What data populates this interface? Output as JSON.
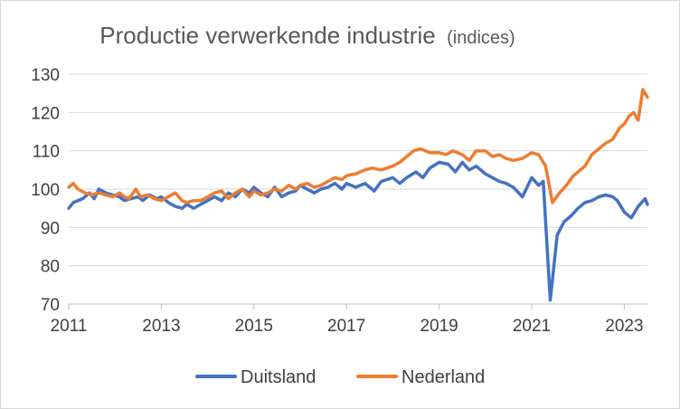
{
  "chart_data": {
    "type": "line",
    "title": "Productie verwerkende industrie",
    "subtitle": "(indices)",
    "xlabel": "",
    "ylabel": "",
    "x_tick_labels": [
      "2011",
      "2013",
      "2015",
      "2017",
      "2019",
      "2021",
      "2023"
    ],
    "x_tick_years": [
      2011,
      2013,
      2015,
      2017,
      2019,
      2021,
      2023
    ],
    "xlim": [
      2011.0,
      2023.5
    ],
    "y_ticks": [
      70,
      80,
      90,
      100,
      110,
      120,
      130
    ],
    "ylim": [
      70,
      130
    ],
    "grid": "horizontal",
    "legend_position": "bottom",
    "series": [
      {
        "name": "Duitsland",
        "color": "#4472C4",
        "points": [
          [
            2011.0,
            95
          ],
          [
            2011.1,
            96.5
          ],
          [
            2011.3,
            97.5
          ],
          [
            2011.45,
            99
          ],
          [
            2011.55,
            97.5
          ],
          [
            2011.65,
            100
          ],
          [
            2011.8,
            99
          ],
          [
            2011.95,
            98.5
          ],
          [
            2012.1,
            98
          ],
          [
            2012.2,
            97
          ],
          [
            2012.35,
            97.5
          ],
          [
            2012.5,
            98
          ],
          [
            2012.6,
            97
          ],
          [
            2012.75,
            98.5
          ],
          [
            2012.9,
            97.5
          ],
          [
            2013.0,
            98
          ],
          [
            2013.15,
            96.5
          ],
          [
            2013.3,
            95.5
          ],
          [
            2013.45,
            95
          ],
          [
            2013.55,
            96
          ],
          [
            2013.7,
            95
          ],
          [
            2013.85,
            96
          ],
          [
            2014.0,
            97
          ],
          [
            2014.15,
            98
          ],
          [
            2014.3,
            97
          ],
          [
            2014.45,
            99
          ],
          [
            2014.6,
            98
          ],
          [
            2014.75,
            100
          ],
          [
            2014.9,
            99
          ],
          [
            2015.0,
            100.5
          ],
          [
            2015.15,
            99
          ],
          [
            2015.3,
            98
          ],
          [
            2015.45,
            100.5
          ],
          [
            2015.6,
            98
          ],
          [
            2015.75,
            99
          ],
          [
            2015.9,
            99.5
          ],
          [
            2016.0,
            101
          ],
          [
            2016.15,
            100
          ],
          [
            2016.3,
            99
          ],
          [
            2016.45,
            100
          ],
          [
            2016.6,
            100.5
          ],
          [
            2016.75,
            101.5
          ],
          [
            2016.9,
            100
          ],
          [
            2017.0,
            101.5
          ],
          [
            2017.2,
            100.5
          ],
          [
            2017.4,
            101.5
          ],
          [
            2017.6,
            99.5
          ],
          [
            2017.75,
            102
          ],
          [
            2018.0,
            103
          ],
          [
            2018.15,
            101.5
          ],
          [
            2018.3,
            103
          ],
          [
            2018.5,
            104.5
          ],
          [
            2018.65,
            103
          ],
          [
            2018.8,
            105.5
          ],
          [
            2019.0,
            107
          ],
          [
            2019.2,
            106.5
          ],
          [
            2019.35,
            104.5
          ],
          [
            2019.5,
            107
          ],
          [
            2019.65,
            105
          ],
          [
            2019.8,
            106
          ],
          [
            2020.0,
            104
          ],
          [
            2020.15,
            103
          ],
          [
            2020.3,
            102
          ],
          [
            2020.45,
            101.5
          ],
          [
            2020.6,
            100.5
          ],
          [
            2020.8,
            98
          ],
          [
            2021.0,
            103
          ],
          [
            2021.15,
            101
          ],
          [
            2021.25,
            102
          ],
          [
            2021.4,
            71
          ],
          [
            2021.55,
            88
          ],
          [
            2021.7,
            91.5
          ],
          [
            2021.85,
            93
          ],
          [
            2022.0,
            95
          ],
          [
            2022.15,
            96.5
          ],
          [
            2022.3,
            97
          ],
          [
            2022.45,
            98
          ],
          [
            2022.6,
            98.5
          ],
          [
            2022.75,
            98
          ],
          [
            2022.85,
            97
          ],
          [
            2023.0,
            94
          ],
          [
            2023.15,
            92.5
          ],
          [
            2023.3,
            95.5
          ],
          [
            2023.45,
            97.5
          ],
          [
            2023.5,
            96
          ]
        ]
      },
      {
        "name": "Nederland",
        "color": "#ED7D31",
        "points": [
          [
            2011.0,
            100.5
          ],
          [
            2011.1,
            101.5
          ],
          [
            2011.2,
            100
          ],
          [
            2011.35,
            99
          ],
          [
            2011.5,
            98.5
          ],
          [
            2011.65,
            99
          ],
          [
            2011.8,
            98.5
          ],
          [
            2011.95,
            98
          ],
          [
            2012.1,
            99
          ],
          [
            2012.2,
            98
          ],
          [
            2012.3,
            97.5
          ],
          [
            2012.45,
            100
          ],
          [
            2012.55,
            98
          ],
          [
            2012.7,
            98.5
          ],
          [
            2012.85,
            97.5
          ],
          [
            2013.0,
            97
          ],
          [
            2013.15,
            98
          ],
          [
            2013.3,
            99
          ],
          [
            2013.45,
            97
          ],
          [
            2013.55,
            96.5
          ],
          [
            2013.7,
            97
          ],
          [
            2013.85,
            97
          ],
          [
            2014.0,
            98
          ],
          [
            2014.15,
            99
          ],
          [
            2014.3,
            99.5
          ],
          [
            2014.45,
            97.5
          ],
          [
            2014.6,
            99
          ],
          [
            2014.75,
            100
          ],
          [
            2014.9,
            98
          ],
          [
            2015.0,
            99.5
          ],
          [
            2015.15,
            98.5
          ],
          [
            2015.3,
            99
          ],
          [
            2015.45,
            100
          ],
          [
            2015.6,
            99.5
          ],
          [
            2015.75,
            101
          ],
          [
            2015.9,
            100
          ],
          [
            2016.0,
            101
          ],
          [
            2016.15,
            101.5
          ],
          [
            2016.3,
            100.5
          ],
          [
            2016.45,
            101
          ],
          [
            2016.6,
            102
          ],
          [
            2016.75,
            103
          ],
          [
            2016.9,
            102.5
          ],
          [
            2017.0,
            103.5
          ],
          [
            2017.2,
            104
          ],
          [
            2017.4,
            105
          ],
          [
            2017.55,
            105.5
          ],
          [
            2017.75,
            105
          ],
          [
            2018.0,
            106
          ],
          [
            2018.15,
            107
          ],
          [
            2018.3,
            108.5
          ],
          [
            2018.45,
            110
          ],
          [
            2018.6,
            110.5
          ],
          [
            2018.8,
            109.5
          ],
          [
            2019.0,
            109.5
          ],
          [
            2019.15,
            109
          ],
          [
            2019.3,
            110
          ],
          [
            2019.5,
            109
          ],
          [
            2019.65,
            107.5
          ],
          [
            2019.8,
            110
          ],
          [
            2020.0,
            110
          ],
          [
            2020.15,
            108.5
          ],
          [
            2020.3,
            109
          ],
          [
            2020.45,
            108
          ],
          [
            2020.6,
            107.5
          ],
          [
            2020.8,
            108
          ],
          [
            2021.0,
            109.5
          ],
          [
            2021.15,
            109
          ],
          [
            2021.3,
            106
          ],
          [
            2021.45,
            96.5
          ],
          [
            2021.6,
            99
          ],
          [
            2021.75,
            101
          ],
          [
            2021.9,
            103.5
          ],
          [
            2022.0,
            104.5
          ],
          [
            2022.15,
            106
          ],
          [
            2022.3,
            109
          ],
          [
            2022.45,
            110.5
          ],
          [
            2022.6,
            112
          ],
          [
            2022.75,
            113
          ],
          [
            2022.9,
            116
          ],
          [
            2023.0,
            117
          ],
          [
            2023.1,
            119
          ],
          [
            2023.2,
            120
          ],
          [
            2023.3,
            118
          ],
          [
            2023.4,
            126
          ],
          [
            2023.5,
            124
          ]
        ]
      }
    ]
  }
}
